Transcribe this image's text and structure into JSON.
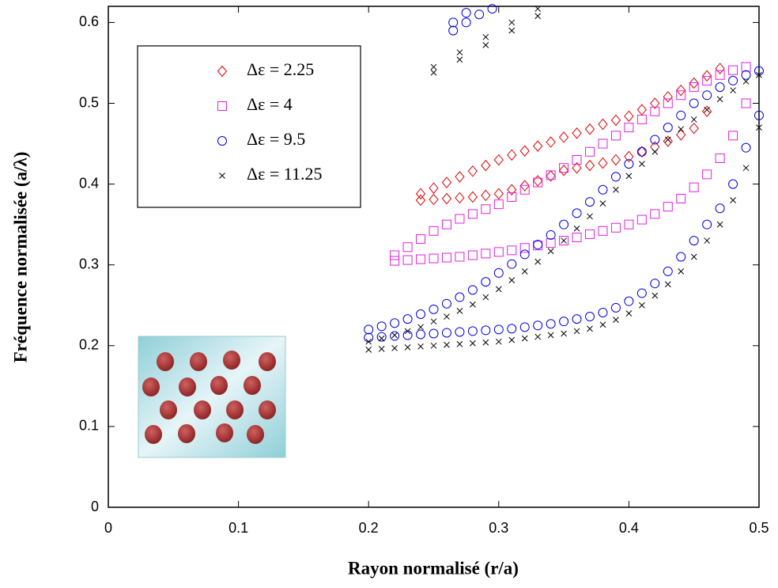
{
  "chart_data": {
    "type": "scatter",
    "x_label": "Rayon normalisé (r/a)",
    "y_label": "Fréquence normalisée (a/λ)",
    "xlim": [
      0,
      0.5
    ],
    "ylim": [
      0,
      0.62
    ],
    "xticks": [
      0,
      0.1,
      0.2,
      0.3,
      0.4,
      0.5
    ],
    "yticks": [
      0,
      0.1,
      0.2,
      0.3,
      0.4,
      0.5,
      0.6
    ],
    "legend": "upper left",
    "series": [
      {
        "name": "Δε = 2.25",
        "color": "#e00000",
        "marker": "diamond",
        "x": [
          0.24,
          0.25,
          0.26,
          0.27,
          0.28,
          0.29,
          0.3,
          0.31,
          0.32,
          0.33,
          0.34,
          0.35,
          0.36,
          0.37,
          0.38,
          0.39,
          0.4,
          0.41,
          0.42,
          0.43,
          0.44,
          0.45,
          0.46,
          0.47,
          0.24,
          0.25,
          0.26,
          0.27,
          0.28,
          0.29,
          0.3,
          0.31,
          0.32,
          0.33,
          0.34,
          0.35,
          0.36,
          0.37,
          0.38,
          0.39,
          0.4,
          0.41,
          0.42,
          0.43,
          0.44,
          0.45,
          0.46
        ],
        "values": [
          0.388,
          0.395,
          0.402,
          0.409,
          0.416,
          0.423,
          0.43,
          0.436,
          0.441,
          0.447,
          0.452,
          0.458,
          0.463,
          0.468,
          0.474,
          0.479,
          0.484,
          0.492,
          0.5,
          0.508,
          0.516,
          0.525,
          0.534,
          0.543,
          0.38,
          0.381,
          0.382,
          0.383,
          0.384,
          0.386,
          0.388,
          0.393,
          0.398,
          0.404,
          0.41,
          0.417,
          0.42,
          0.423,
          0.426,
          0.43,
          0.434,
          0.44,
          0.446,
          0.453,
          0.461,
          0.469,
          0.49
        ]
      },
      {
        "name": "Δε = 4",
        "color": "#e020e0",
        "marker": "square",
        "x": [
          0.22,
          0.23,
          0.24,
          0.25,
          0.26,
          0.27,
          0.28,
          0.29,
          0.3,
          0.31,
          0.32,
          0.33,
          0.34,
          0.35,
          0.36,
          0.37,
          0.38,
          0.39,
          0.4,
          0.41,
          0.42,
          0.43,
          0.44,
          0.45,
          0.46,
          0.47,
          0.48,
          0.49,
          0.22,
          0.23,
          0.24,
          0.25,
          0.26,
          0.27,
          0.28,
          0.29,
          0.3,
          0.31,
          0.32,
          0.33,
          0.34,
          0.35,
          0.36,
          0.37,
          0.38,
          0.39,
          0.4,
          0.41,
          0.42,
          0.43,
          0.44,
          0.45,
          0.46,
          0.47,
          0.48,
          0.49
        ],
        "values": [
          0.312,
          0.322,
          0.332,
          0.342,
          0.35,
          0.357,
          0.363,
          0.369,
          0.375,
          0.384,
          0.393,
          0.402,
          0.411,
          0.42,
          0.43,
          0.44,
          0.45,
          0.46,
          0.47,
          0.48,
          0.49,
          0.5,
          0.51,
          0.52,
          0.528,
          0.535,
          0.541,
          0.545,
          0.305,
          0.306,
          0.307,
          0.308,
          0.309,
          0.31,
          0.312,
          0.314,
          0.316,
          0.318,
          0.321,
          0.324,
          0.327,
          0.33,
          0.334,
          0.338,
          0.342,
          0.346,
          0.35,
          0.356,
          0.363,
          0.372,
          0.382,
          0.396,
          0.412,
          0.432,
          0.46,
          0.5
        ]
      },
      {
        "name": "Δε = 9.5",
        "color": "#0000e0",
        "marker": "circle",
        "x": [
          0.2,
          0.21,
          0.22,
          0.23,
          0.24,
          0.25,
          0.26,
          0.27,
          0.28,
          0.29,
          0.3,
          0.31,
          0.32,
          0.33,
          0.34,
          0.35,
          0.36,
          0.37,
          0.38,
          0.39,
          0.4,
          0.41,
          0.42,
          0.43,
          0.44,
          0.45,
          0.46,
          0.47,
          0.48,
          0.49,
          0.5,
          0.2,
          0.21,
          0.22,
          0.23,
          0.24,
          0.25,
          0.26,
          0.27,
          0.28,
          0.29,
          0.3,
          0.31,
          0.32,
          0.33,
          0.34,
          0.35,
          0.36,
          0.37,
          0.38,
          0.39,
          0.4,
          0.41,
          0.42,
          0.43,
          0.44,
          0.45,
          0.46,
          0.47,
          0.48,
          0.49,
          0.5,
          0.265,
          0.265,
          0.275,
          0.275,
          0.285,
          0.295
        ],
        "values": [
          0.22,
          0.224,
          0.228,
          0.233,
          0.239,
          0.245,
          0.252,
          0.26,
          0.269,
          0.279,
          0.29,
          0.301,
          0.313,
          0.325,
          0.337,
          0.35,
          0.364,
          0.378,
          0.393,
          0.409,
          0.425,
          0.44,
          0.455,
          0.47,
          0.485,
          0.5,
          0.51,
          0.52,
          0.528,
          0.535,
          0.54,
          0.21,
          0.211,
          0.212,
          0.213,
          0.214,
          0.215,
          0.216,
          0.217,
          0.218,
          0.219,
          0.22,
          0.221,
          0.223,
          0.225,
          0.227,
          0.23,
          0.233,
          0.236,
          0.241,
          0.247,
          0.255,
          0.265,
          0.277,
          0.292,
          0.31,
          0.33,
          0.35,
          0.37,
          0.4,
          0.445,
          0.485,
          0.59,
          0.6,
          0.6,
          0.612,
          0.61,
          0.617
        ]
      },
      {
        "name": "Δε = 11.25",
        "color": "#000000",
        "marker": "x",
        "x": [
          0.2,
          0.21,
          0.22,
          0.23,
          0.24,
          0.25,
          0.26,
          0.27,
          0.28,
          0.29,
          0.3,
          0.31,
          0.32,
          0.33,
          0.34,
          0.35,
          0.36,
          0.37,
          0.38,
          0.39,
          0.4,
          0.41,
          0.42,
          0.43,
          0.44,
          0.45,
          0.46,
          0.47,
          0.48,
          0.49,
          0.5,
          0.2,
          0.21,
          0.22,
          0.23,
          0.24,
          0.25,
          0.26,
          0.27,
          0.28,
          0.29,
          0.3,
          0.31,
          0.32,
          0.33,
          0.34,
          0.35,
          0.36,
          0.37,
          0.38,
          0.39,
          0.4,
          0.41,
          0.42,
          0.43,
          0.44,
          0.45,
          0.46,
          0.47,
          0.48,
          0.49,
          0.5,
          0.25,
          0.27,
          0.29,
          0.31,
          0.33,
          0.25,
          0.27,
          0.29,
          0.31,
          0.33
        ],
        "values": [
          0.205,
          0.209,
          0.213,
          0.218,
          0.223,
          0.23,
          0.236,
          0.243,
          0.251,
          0.26,
          0.27,
          0.281,
          0.292,
          0.304,
          0.317,
          0.33,
          0.345,
          0.36,
          0.376,
          0.393,
          0.41,
          0.425,
          0.44,
          0.455,
          0.468,
          0.48,
          0.492,
          0.505,
          0.516,
          0.527,
          0.535,
          0.195,
          0.196,
          0.197,
          0.198,
          0.199,
          0.2,
          0.201,
          0.202,
          0.203,
          0.204,
          0.205,
          0.207,
          0.209,
          0.211,
          0.213,
          0.215,
          0.218,
          0.221,
          0.226,
          0.232,
          0.24,
          0.25,
          0.262,
          0.276,
          0.292,
          0.31,
          0.33,
          0.35,
          0.38,
          0.42,
          0.47,
          0.545,
          0.563,
          0.582,
          0.6,
          0.617,
          0.538,
          0.554,
          0.572,
          0.59,
          0.608
        ]
      }
    ]
  }
}
